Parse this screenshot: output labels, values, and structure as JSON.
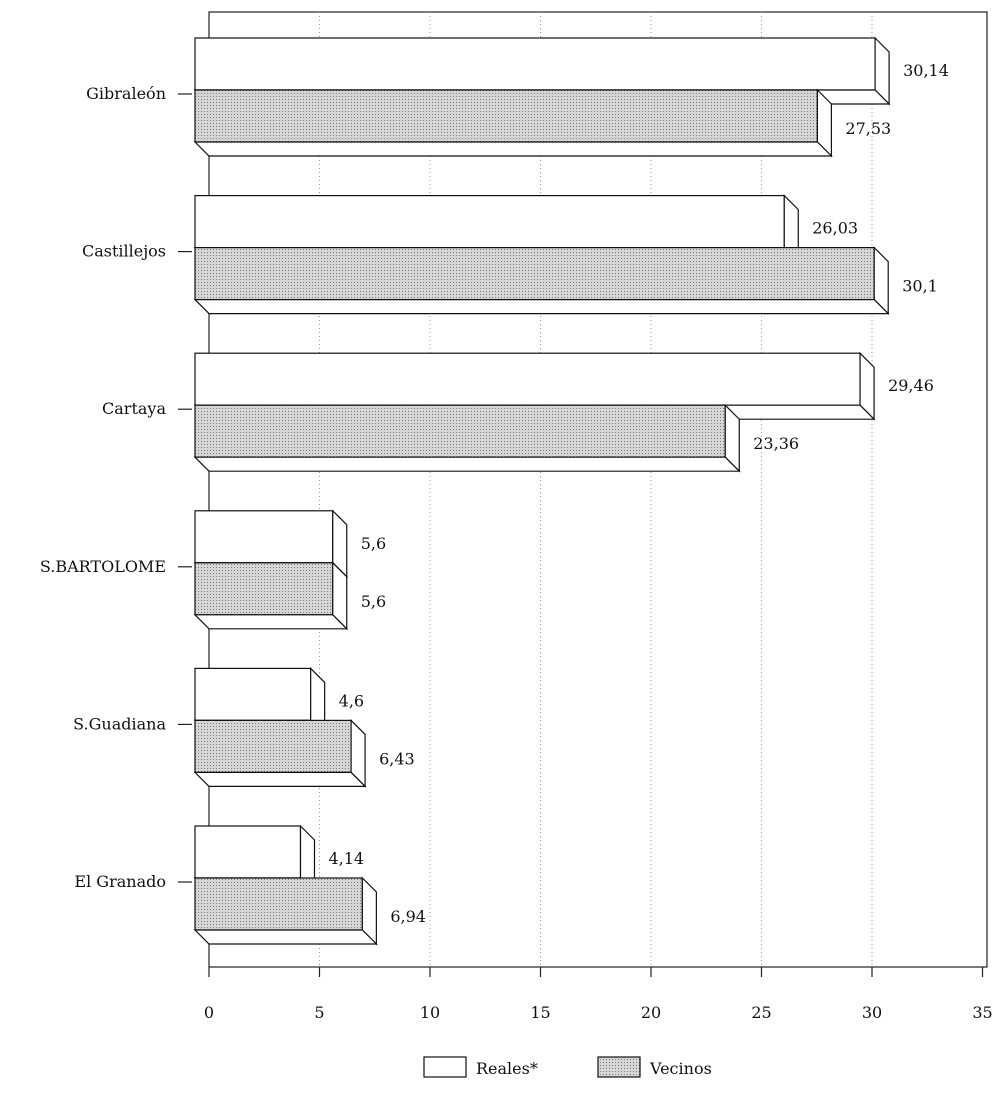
{
  "chart_data": {
    "type": "bar",
    "orientation": "horizontal",
    "style": "3d",
    "categories": [
      "Gibraleón",
      "Castillejos",
      "Cartaya",
      "S.BARTOLOME",
      "S.Guadiana",
      "El Granado"
    ],
    "series": [
      {
        "name": "Reales*",
        "values": [
          30.14,
          26.03,
          29.46,
          5.6,
          4.6,
          4.14
        ],
        "labels": [
          "30,14",
          "26,03",
          "29,46",
          "5,6",
          "4,6",
          "4,14"
        ],
        "fill": "#ffffff"
      },
      {
        "name": "Vecinos",
        "values": [
          27.53,
          30.1,
          23.36,
          5.6,
          6.43,
          6.94
        ],
        "labels": [
          "27,53",
          "30,1",
          "23,36",
          "5,6",
          "6,43",
          "6,94"
        ],
        "fill": "#c8c8c8"
      }
    ],
    "x_ticks": [
      "0",
      "5",
      "10",
      "15",
      "20",
      "25",
      "30",
      "35"
    ],
    "xlim": [
      0,
      35
    ],
    "grid": "vertical-dotted",
    "legend_position": "bottom-center",
    "title": "",
    "xlabel": "",
    "ylabel": ""
  }
}
